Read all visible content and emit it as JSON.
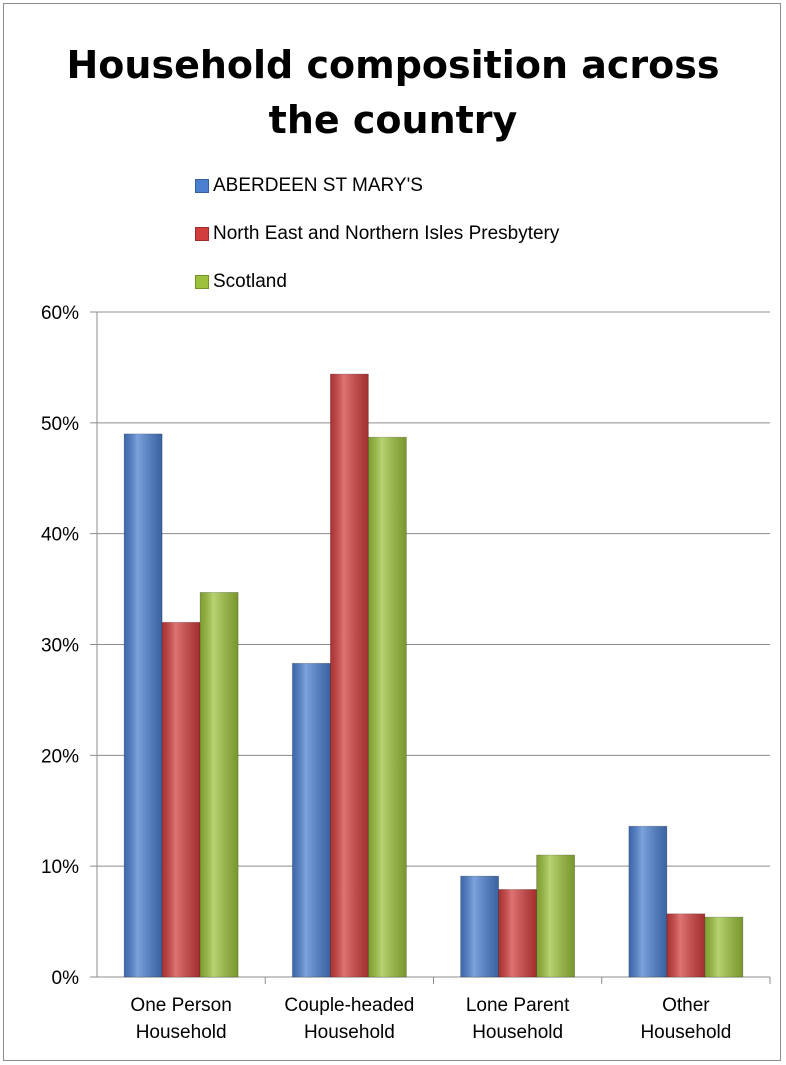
{
  "chart_data": {
    "type": "bar",
    "title": [
      "Household composition across",
      "the country"
    ],
    "categories": [
      [
        "One Person",
        "Household"
      ],
      [
        "Couple-headed",
        "Household"
      ],
      [
        "Lone Parent",
        "Household"
      ],
      [
        "Other",
        "Household"
      ]
    ],
    "series": [
      {
        "name": "ABERDEEN ST MARY'S",
        "color": "#4a7fd0",
        "values": [
          0.49,
          0.283,
          0.091,
          0.136
        ]
      },
      {
        "name": "North East and Northern Isles Presbytery",
        "color": "#d23d3d",
        "values": [
          0.32,
          0.544,
          0.079,
          0.057
        ]
      },
      {
        "name": "Scotland",
        "color": "#9cc23b",
        "values": [
          0.347,
          0.487,
          0.11,
          0.054
        ]
      }
    ],
    "yticks": [
      "0%",
      "10%",
      "20%",
      "30%",
      "40%",
      "50%",
      "60%"
    ],
    "ylim": [
      0,
      0.6
    ],
    "grid": true,
    "legend_position": "top"
  }
}
